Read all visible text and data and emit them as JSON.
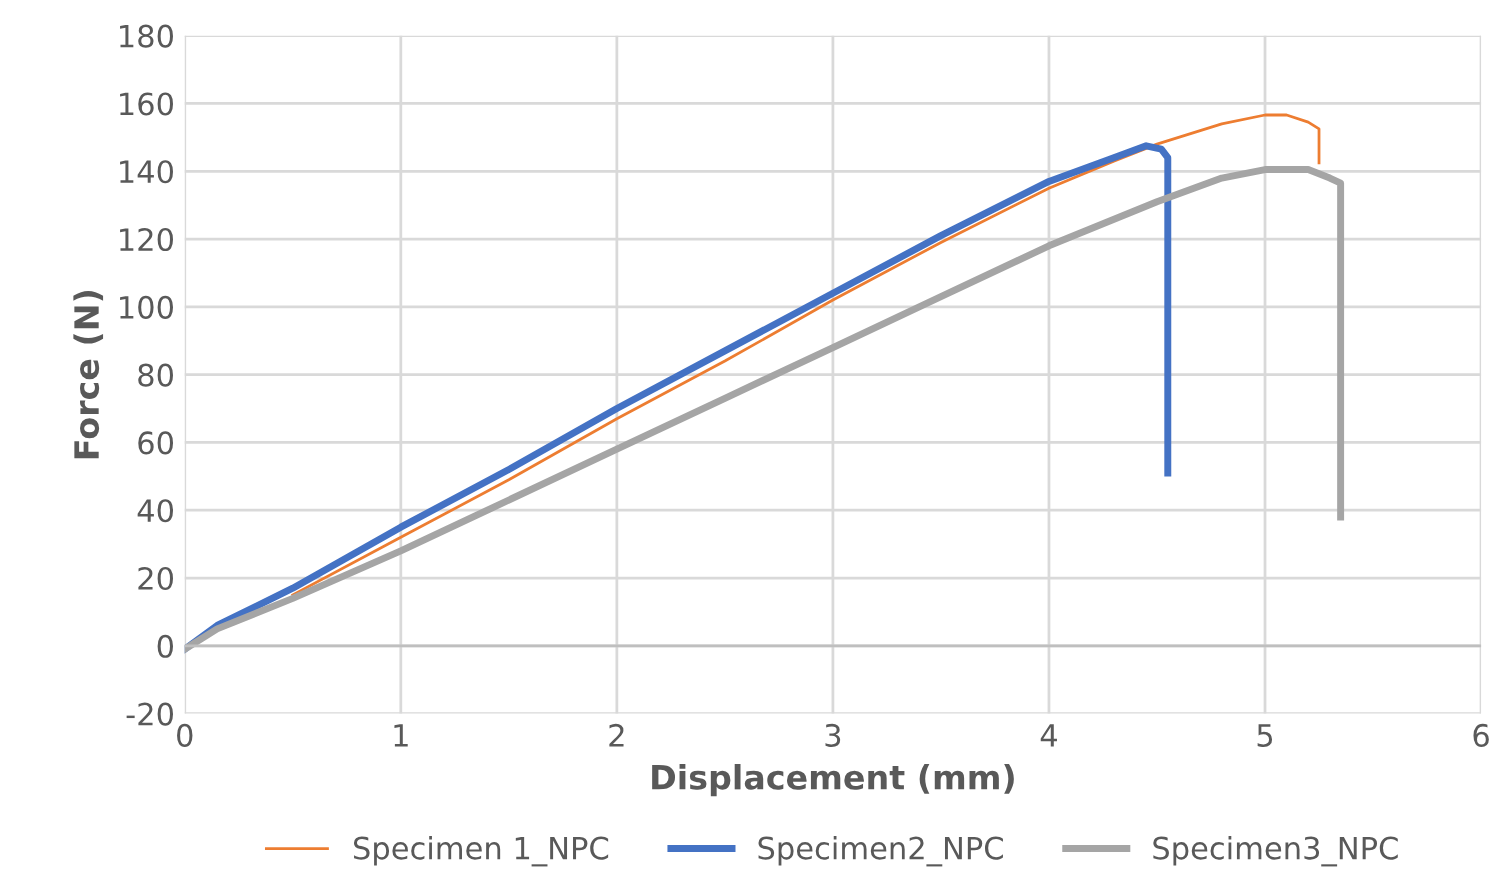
{
  "chart_data": {
    "type": "line",
    "xlabel": "Displacement (mm)",
    "ylabel": "Force (N)",
    "xlim": [
      0,
      6
    ],
    "ylim": [
      -20,
      180
    ],
    "xticks": [
      0,
      1,
      2,
      3,
      4,
      5,
      6
    ],
    "yticks": [
      -20,
      0,
      20,
      40,
      60,
      80,
      100,
      120,
      140,
      160,
      180
    ],
    "grid": true,
    "legend": "bottom",
    "marker": "none",
    "line_style": "solid",
    "series": [
      {
        "name": "Specimen 1_NPC",
        "color": "#ed7d31",
        "x": [
          0.5,
          1,
          1.5,
          2,
          2.5,
          3,
          3.5,
          4,
          4.3,
          4.5,
          4.8,
          5.0,
          5.1,
          5.2,
          5.25,
          5.25
        ],
        "values": [
          15,
          32,
          49,
          67,
          84,
          102,
          119,
          135,
          143,
          148,
          154,
          156.6,
          156.6,
          154.5,
          152.5,
          142.5
        ]
      },
      {
        "name": "Specimen2_NPC",
        "color": "#4472c4",
        "x": [
          0,
          0.15,
          0.5,
          1,
          1.5,
          2,
          2.5,
          3,
          3.5,
          4,
          4.3,
          4.45,
          4.52,
          4.55,
          4.55
        ],
        "values": [
          -1,
          6,
          17,
          35,
          52,
          70,
          87,
          104,
          121,
          137,
          144,
          147.5,
          146.5,
          144,
          51
        ]
      },
      {
        "name": "Specimen3_NPC",
        "color": "#a5a5a5",
        "x": [
          0,
          0.15,
          0.5,
          1,
          1.5,
          2,
          2.5,
          3,
          3.5,
          4,
          4.5,
          4.8,
          5.0,
          5.2,
          5.3,
          5.35,
          5.35
        ],
        "values": [
          -1,
          5,
          14,
          28,
          43,
          58,
          73,
          88,
          103,
          118,
          131,
          138,
          140.5,
          140.5,
          138,
          136.5,
          38
        ]
      }
    ]
  }
}
